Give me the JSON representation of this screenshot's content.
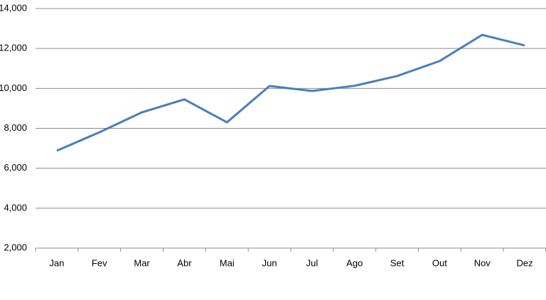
{
  "chart_data": {
    "type": "line",
    "categories": [
      "Jan",
      "Fev",
      "Mar",
      "Abr",
      "Mai",
      "Jun",
      "Jul",
      "Ago",
      "Set",
      "Out",
      "Nov",
      "Dez"
    ],
    "series": [
      {
        "color": "#4a7ebb",
        "values": [
          6880,
          7800,
          8800,
          9450,
          8300,
          10120,
          9870,
          10130,
          10620,
          11370,
          12680,
          12150
        ]
      }
    ],
    "ylim": [
      2000,
      14000
    ],
    "yticks": [
      {
        "value": 2000,
        "label": "2,000"
      },
      {
        "value": 4000,
        "label": "4,000"
      },
      {
        "value": 6000,
        "label": "6,000"
      },
      {
        "value": 8000,
        "label": "8,000"
      },
      {
        "value": 10000,
        "label": "10,000"
      },
      {
        "value": 12000,
        "label": "12,000"
      },
      {
        "value": 14000,
        "label": "14,000"
      }
    ],
    "grid": true
  }
}
